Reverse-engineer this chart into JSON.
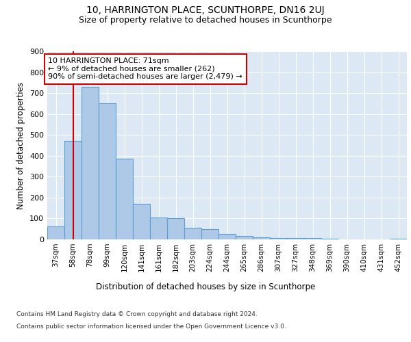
{
  "title1": "10, HARRINGTON PLACE, SCUNTHORPE, DN16 2UJ",
  "title2": "Size of property relative to detached houses in Scunthorpe",
  "xlabel": "Distribution of detached houses by size in Scunthorpe",
  "ylabel": "Number of detached properties",
  "categories": [
    "37sqm",
    "58sqm",
    "78sqm",
    "99sqm",
    "120sqm",
    "141sqm",
    "161sqm",
    "182sqm",
    "203sqm",
    "224sqm",
    "244sqm",
    "265sqm",
    "286sqm",
    "307sqm",
    "327sqm",
    "348sqm",
    "369sqm",
    "390sqm",
    "410sqm",
    "431sqm",
    "452sqm"
  ],
  "values": [
    62,
    470,
    730,
    650,
    385,
    170,
    105,
    100,
    55,
    50,
    25,
    15,
    10,
    8,
    7,
    5,
    3,
    1,
    1,
    1,
    3
  ],
  "bar_color": "#aec8e8",
  "bar_edge_color": "#5a9fd4",
  "annotation_text": "10 HARRINGTON PLACE: 71sqm\n← 9% of detached houses are smaller (262)\n90% of semi-detached houses are larger (2,479) →",
  "annotation_box_color": "#ffffff",
  "annotation_box_edge": "#cc0000",
  "vline_x": 1.0,
  "vline_color": "#cc0000",
  "ylim": [
    0,
    900
  ],
  "yticks": [
    0,
    100,
    200,
    300,
    400,
    500,
    600,
    700,
    800,
    900
  ],
  "bg_color": "#dce9f5",
  "fig_bg_color": "#ffffff",
  "grid_color": "#ffffff",
  "footer1": "Contains HM Land Registry data © Crown copyright and database right 2024.",
  "footer2": "Contains public sector information licensed under the Open Government Licence v3.0."
}
